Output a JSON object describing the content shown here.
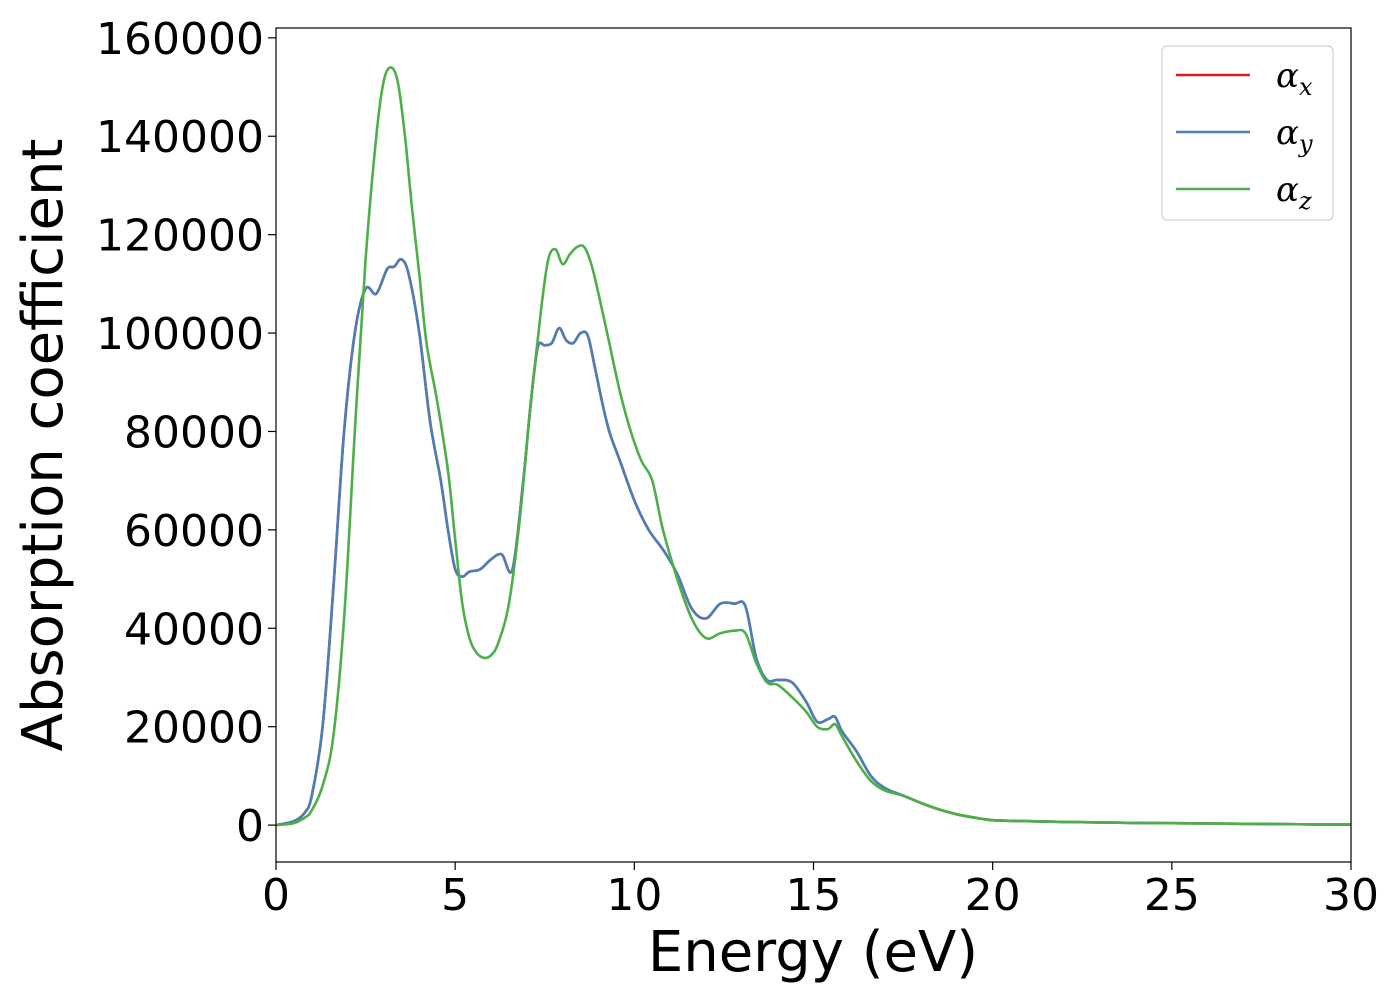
{
  "chart_data": {
    "type": "line",
    "xlabel": "Energy (eV)",
    "ylabel": "Absorption coefficient",
    "xlim": [
      0,
      30
    ],
    "ylim": [
      -7500,
      162000
    ],
    "xticks": [
      "0",
      "5",
      "10",
      "15",
      "20",
      "25",
      "30"
    ],
    "yticks": [
      "0",
      "20000",
      "40000",
      "60000",
      "80000",
      "100000",
      "120000",
      "140000",
      "160000"
    ],
    "grid": false,
    "legend": "top-right",
    "series": [
      {
        "name": "α_x",
        "symbol": "α",
        "sub": "x",
        "color": "#e41a1c",
        "x": [
          0,
          0.5,
          0.8,
          1.0,
          1.3,
          1.6,
          1.9,
          2.2,
          2.5,
          2.8,
          3.1,
          3.3,
          3.5,
          3.7,
          4.0,
          4.3,
          4.6,
          4.8,
          5.0,
          5.2,
          5.4,
          5.7,
          6.0,
          6.3,
          6.6,
          6.9,
          7.1,
          7.3,
          7.5,
          7.7,
          7.9,
          8.1,
          8.3,
          8.5,
          8.7,
          8.9,
          9.1,
          9.3,
          9.6,
          10.0,
          10.4,
          10.8,
          11.2,
          11.6,
          12.0,
          12.4,
          12.8,
          13.1,
          13.4,
          13.7,
          14.0,
          14.4,
          14.8,
          15.1,
          15.4,
          15.6,
          15.8,
          16.2,
          16.6,
          17.0,
          17.5,
          18.0,
          18.5,
          19.0,
          19.5,
          20.0,
          21,
          22,
          23,
          24,
          25,
          26,
          27,
          28,
          29,
          30
        ],
        "y": [
          0,
          800,
          2500,
          6000,
          20000,
          48000,
          80000,
          100000,
          109000,
          108000,
          113000,
          113500,
          115000,
          112000,
          100000,
          82000,
          70000,
          60000,
          52000,
          50500,
          51500,
          52000,
          54000,
          55000,
          52000,
          70000,
          85000,
          97000,
          97500,
          98000,
          101000,
          98500,
          98000,
          100000,
          99500,
          93000,
          86000,
          80000,
          74000,
          66000,
          60000,
          56000,
          51000,
          44000,
          42000,
          45000,
          45000,
          44500,
          34000,
          29500,
          29500,
          29000,
          25000,
          21000,
          21500,
          22000,
          19000,
          15000,
          10000,
          7500,
          6000,
          4500,
          3200,
          2200,
          1500,
          1000,
          800,
          650,
          550,
          450,
          380,
          320,
          260,
          200,
          140,
          100
        ]
      },
      {
        "name": "α_y",
        "symbol": "α",
        "sub": "y",
        "color": "#4a7fb8",
        "x": [
          0,
          0.5,
          0.8,
          1.0,
          1.3,
          1.6,
          1.9,
          2.2,
          2.5,
          2.8,
          3.1,
          3.3,
          3.5,
          3.7,
          4.0,
          4.3,
          4.6,
          4.8,
          5.0,
          5.2,
          5.4,
          5.7,
          6.0,
          6.3,
          6.6,
          6.9,
          7.1,
          7.3,
          7.5,
          7.7,
          7.9,
          8.1,
          8.3,
          8.5,
          8.7,
          8.9,
          9.1,
          9.3,
          9.6,
          10.0,
          10.4,
          10.8,
          11.2,
          11.6,
          12.0,
          12.4,
          12.8,
          13.1,
          13.4,
          13.7,
          14.0,
          14.4,
          14.8,
          15.1,
          15.4,
          15.6,
          15.8,
          16.2,
          16.6,
          17.0,
          17.5,
          18.0,
          18.5,
          19.0,
          19.5,
          20.0,
          21,
          22,
          23,
          24,
          25,
          26,
          27,
          28,
          29,
          30
        ],
        "y": [
          0,
          800,
          2500,
          6000,
          20000,
          48000,
          80000,
          100000,
          109000,
          108000,
          113000,
          113500,
          115000,
          112000,
          100000,
          82000,
          70000,
          60000,
          52000,
          50500,
          51500,
          52000,
          54000,
          55000,
          52000,
          70000,
          85000,
          97000,
          97500,
          98000,
          101000,
          98500,
          98000,
          100000,
          99500,
          93000,
          86000,
          80000,
          74000,
          66000,
          60000,
          56000,
          51000,
          44000,
          42000,
          45000,
          45000,
          44500,
          34000,
          29500,
          29500,
          29000,
          25000,
          21000,
          21500,
          22000,
          19000,
          15000,
          10000,
          7500,
          6000,
          4500,
          3200,
          2200,
          1500,
          1000,
          800,
          650,
          550,
          450,
          380,
          320,
          260,
          200,
          140,
          100
        ]
      },
      {
        "name": "α_z",
        "symbol": "α",
        "sub": "z",
        "color": "#4daf4a",
        "x": [
          0,
          0.5,
          0.8,
          1.0,
          1.3,
          1.6,
          1.9,
          2.2,
          2.5,
          2.8,
          3.0,
          3.2,
          3.4,
          3.6,
          3.8,
          4.0,
          4.2,
          4.5,
          4.8,
          5.0,
          5.2,
          5.4,
          5.6,
          5.8,
          6.0,
          6.2,
          6.5,
          6.8,
          7.1,
          7.4,
          7.6,
          7.8,
          8.0,
          8.2,
          8.4,
          8.6,
          8.8,
          9.0,
          9.3,
          9.6,
          9.9,
          10.2,
          10.5,
          10.8,
          11.2,
          11.6,
          12.0,
          12.4,
          12.8,
          13.1,
          13.4,
          13.7,
          14.0,
          14.4,
          14.8,
          15.1,
          15.4,
          15.6,
          15.8,
          16.2,
          16.6,
          17.0,
          17.5,
          18.0,
          18.5,
          19.0,
          19.5,
          20.0,
          21,
          22,
          23,
          24,
          25,
          26,
          27,
          28,
          29,
          30
        ],
        "y": [
          0,
          400,
          1500,
          3000,
          8000,
          18000,
          42000,
          80000,
          115000,
          140000,
          151000,
          154000,
          151000,
          140000,
          125000,
          112000,
          98000,
          86000,
          72000,
          58000,
          45000,
          38000,
          35000,
          34000,
          34500,
          37000,
          45000,
          62000,
          85000,
          105000,
          115000,
          117000,
          114000,
          116000,
          117500,
          117500,
          114000,
          108000,
          98000,
          88000,
          80000,
          74000,
          70000,
          60000,
          50000,
          42000,
          38000,
          39000,
          39500,
          39000,
          33000,
          29000,
          28500,
          26000,
          23000,
          20000,
          19500,
          20500,
          18000,
          13000,
          9000,
          7000,
          6000,
          4500,
          3200,
          2200,
          1500,
          1000,
          800,
          650,
          550,
          450,
          380,
          320,
          260,
          200,
          140,
          100
        ]
      }
    ]
  }
}
